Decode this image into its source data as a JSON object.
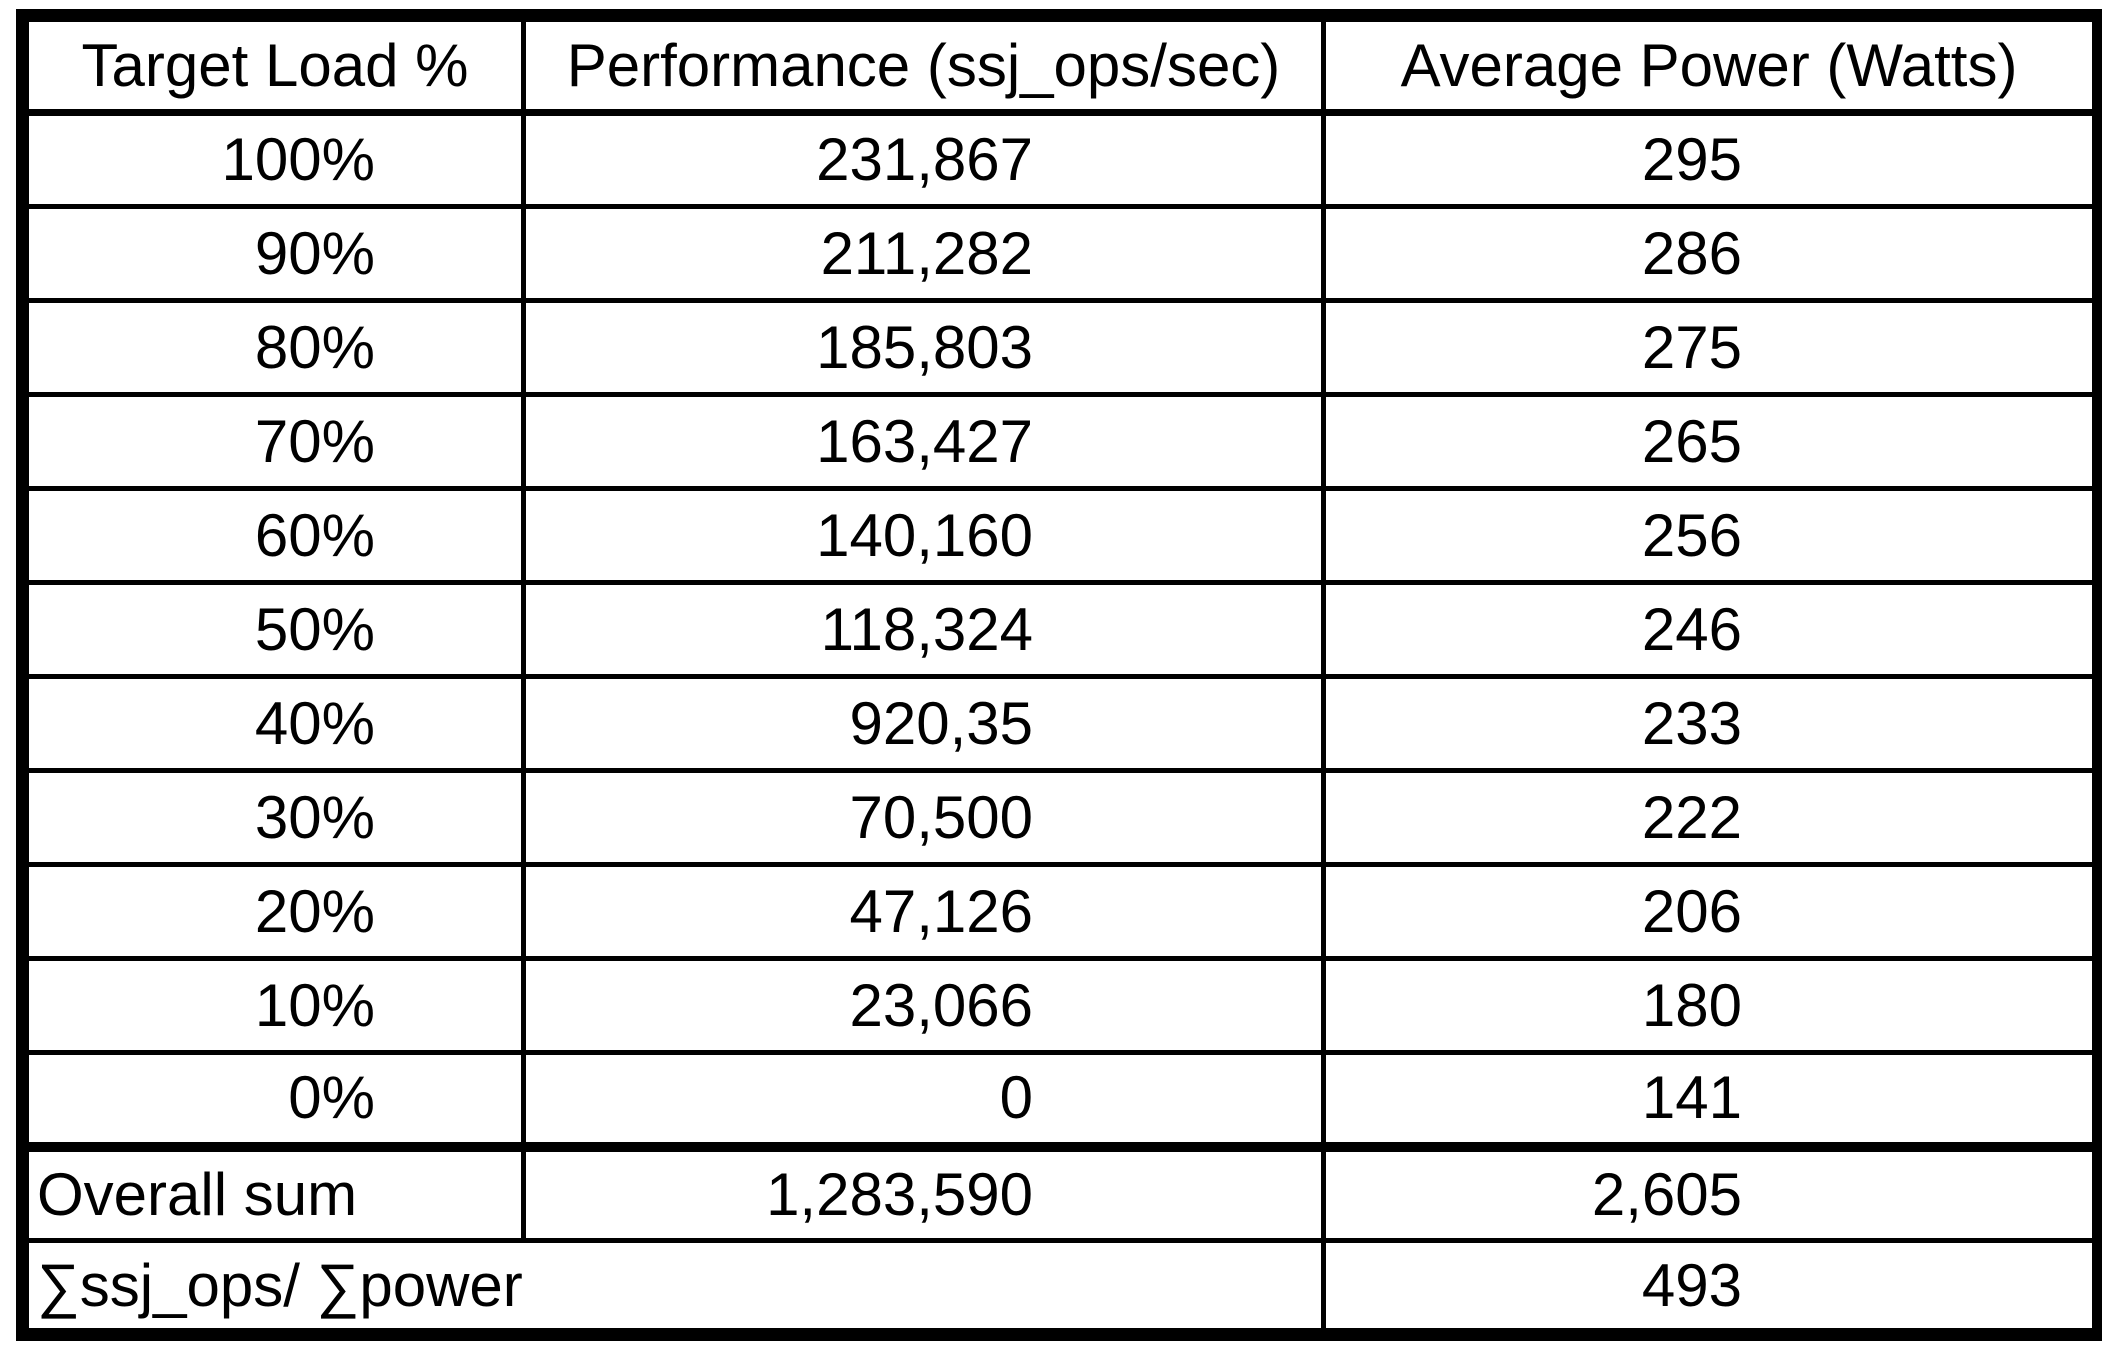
{
  "colors": {
    "border": "#000000",
    "background": "#ffffff",
    "text": "#000000"
  },
  "table": {
    "columns": [
      {
        "label": "Target Load %"
      },
      {
        "label": "Performance (ssj_ops/sec)"
      },
      {
        "label": "Average Power (Watts)"
      }
    ],
    "rows": [
      {
        "load": "100%",
        "performance": "231,867",
        "power": "295"
      },
      {
        "load": "90%",
        "performance": "211,282",
        "power": "286"
      },
      {
        "load": "80%",
        "performance": "185,803",
        "power": "275"
      },
      {
        "load": "70%",
        "performance": "163,427",
        "power": "265"
      },
      {
        "load": "60%",
        "performance": "140,160",
        "power": "256"
      },
      {
        "load": "50%",
        "performance": "118,324",
        "power": "246"
      },
      {
        "load": "40%",
        "performance": "920,35",
        "power": "233"
      },
      {
        "load": "30%",
        "performance": "70,500",
        "power": "222"
      },
      {
        "load": "20%",
        "performance": "47,126",
        "power": "206"
      },
      {
        "load": "10%",
        "performance": "23,066",
        "power": "180"
      },
      {
        "load": "0%",
        "performance": "0",
        "power": "141"
      }
    ],
    "overall": {
      "label": "Overall sum",
      "performance": "1,283,590",
      "power": "2,605"
    },
    "ratio": {
      "label": "∑ssj_ops/ ∑power",
      "power": "493"
    }
  },
  "chart_data": {
    "type": "table",
    "title": "",
    "columns": [
      "Target Load %",
      "Performance (ssj_ops/sec)",
      "Average Power (Watts)"
    ],
    "target_load_pct": [
      100,
      90,
      80,
      70,
      60,
      50,
      40,
      30,
      20,
      10,
      0
    ],
    "performance_ssj_ops_sec_as_shown": [
      "231,867",
      "211,282",
      "185,803",
      "163,427",
      "140,160",
      "118,324",
      "920,35",
      "70,500",
      "47,126",
      "23,066",
      "0"
    ],
    "average_power_watts": [
      295,
      286,
      275,
      265,
      256,
      246,
      233,
      222,
      206,
      180,
      141
    ],
    "overall_sum": {
      "performance": 1283590,
      "power": 2605
    },
    "sum_ssj_ops_over_sum_power": 493,
    "layout": {
      "grid": true,
      "header_row": true,
      "last_row_merged_first_two_columns": true
    }
  }
}
